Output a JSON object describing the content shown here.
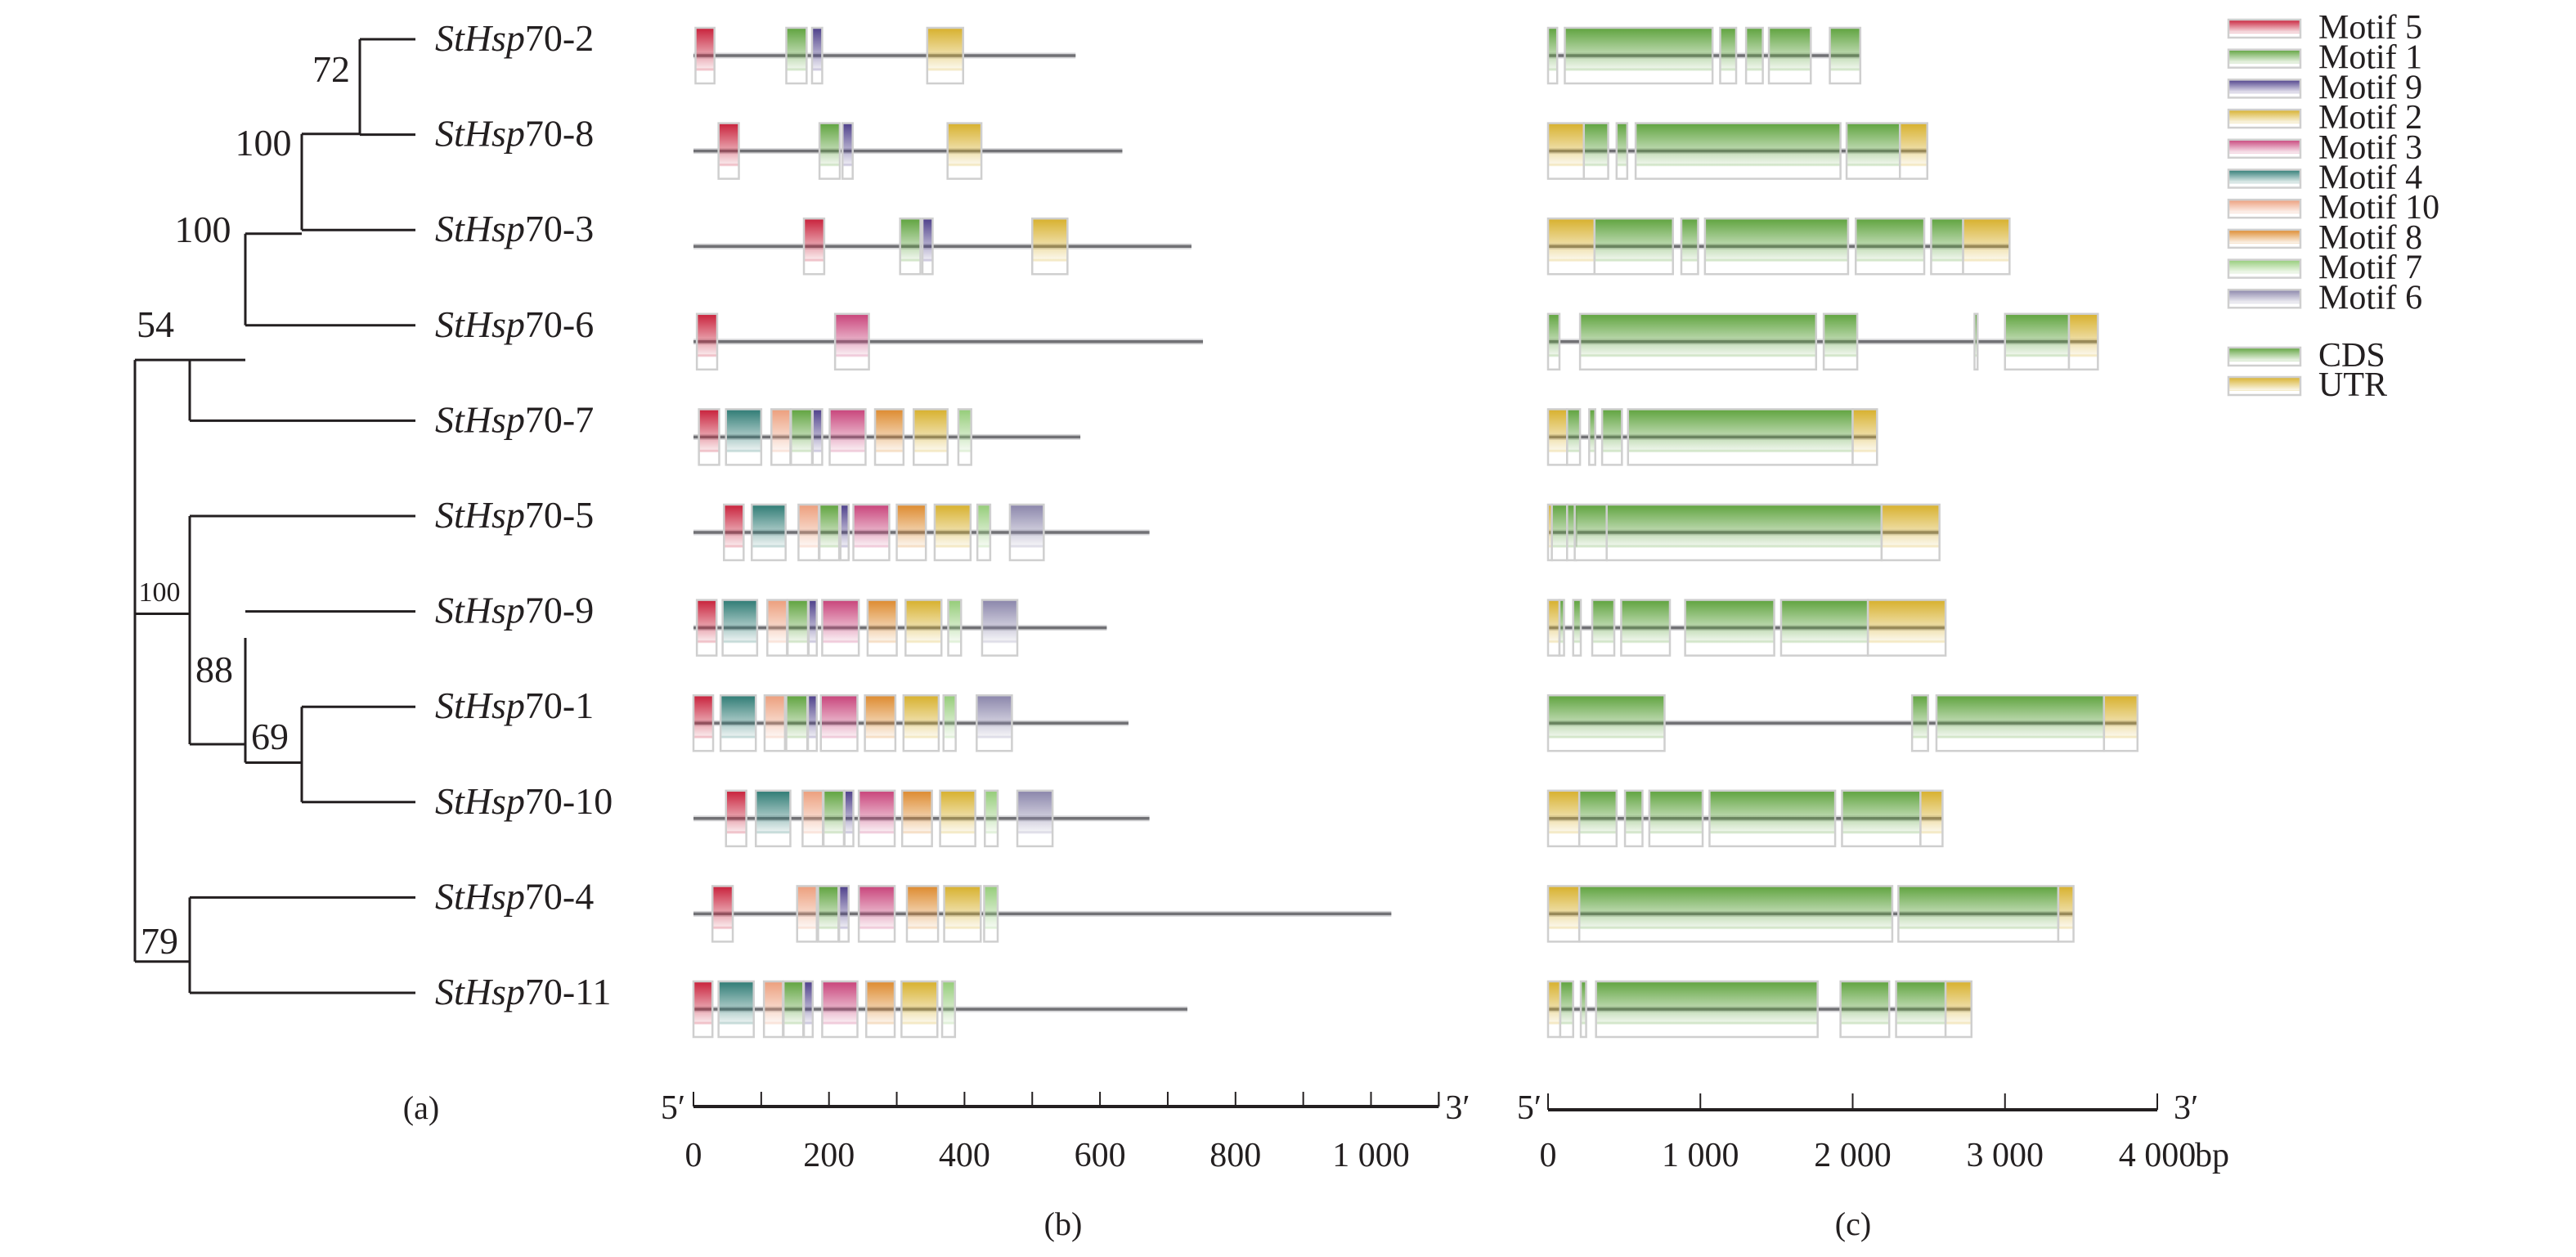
{
  "figure": {
    "panel_labels": [
      "(a)",
      "(b)",
      "(c)"
    ]
  },
  "chart_data": [
    {
      "type": "table",
      "panel": "(a)",
      "title": "Phylogenetic tree",
      "genes": [
        "StHsp70-2",
        "StHsp70-8",
        "StHsp70-3",
        "StHsp70-6",
        "StHsp70-7",
        "StHsp70-5",
        "StHsp70-9",
        "StHsp70-1",
        "StHsp70-10",
        "StHsp70-4",
        "StHsp70-11"
      ],
      "gene_prefix_italic": "StHsp",
      "gene_suffixes": [
        "70-2",
        "70-8",
        "70-3",
        "70-6",
        "70-7",
        "70-5",
        "70-9",
        "70-1",
        "70-10",
        "70-4",
        "70-11"
      ],
      "bootstrap": [
        {
          "value": "72",
          "clade": [
            "StHsp70-2",
            "StHsp70-8"
          ]
        },
        {
          "value": "100",
          "clade": [
            "StHsp70-2",
            "StHsp70-8",
            "StHsp70-3"
          ]
        },
        {
          "value": "100",
          "clade": [
            "StHsp70-2",
            "StHsp70-8",
            "StHsp70-3",
            "StHsp70-6"
          ]
        },
        {
          "value": "54",
          "clade": [
            "StHsp70-2",
            "StHsp70-8",
            "StHsp70-3",
            "StHsp70-6",
            "StHsp70-7"
          ]
        },
        {
          "value": "100",
          "clade": [
            "StHsp70-5",
            "StHsp70-9",
            "StHsp70-1",
            "StHsp70-10"
          ]
        },
        {
          "value": "88",
          "clade": [
            "StHsp70-9",
            "StHsp70-1",
            "StHsp70-10"
          ]
        },
        {
          "value": "69",
          "clade": [
            "StHsp70-1",
            "StHsp70-10"
          ]
        },
        {
          "value": "79",
          "clade": [
            "StHsp70-4",
            "StHsp70-11"
          ]
        }
      ]
    },
    {
      "type": "bar",
      "panel": "(b)",
      "title": "Conserved motifs",
      "xlabel": "",
      "end_labels": [
        "5′",
        "3′"
      ],
      "xlim": [
        0,
        1100
      ],
      "ticks": [
        0,
        200,
        400,
        600,
        800,
        1000
      ],
      "tick_labels": [
        "0",
        "200",
        "400",
        "600",
        "800",
        "1 000"
      ],
      "minor_tick_step": 100,
      "rows": [
        {
          "gene": "StHsp70-2",
          "length": 564,
          "motifs": [
            [
              5,
              3,
              31
            ],
            [
              1,
              137,
              167
            ],
            [
              9,
              175,
              190
            ],
            [
              2,
              345,
              398
            ]
          ]
        },
        {
          "gene": "StHsp70-8",
          "length": 633,
          "motifs": [
            [
              5,
              37,
              67
            ],
            [
              1,
              186,
              216
            ],
            [
              9,
              220,
              235
            ],
            [
              2,
              375,
              425
            ]
          ]
        },
        {
          "gene": "StHsp70-3",
          "length": 735,
          "motifs": [
            [
              5,
              163,
              193
            ],
            [
              1,
              305,
              335
            ],
            [
              9,
              338,
              353
            ],
            [
              2,
              500,
              552
            ]
          ]
        },
        {
          "gene": "StHsp70-6",
          "length": 752,
          "motifs": [
            [
              5,
              5,
              35
            ],
            [
              3,
              209,
              259
            ]
          ]
        },
        {
          "gene": "StHsp70-7",
          "length": 571,
          "motifs": [
            [
              5,
              8,
              38
            ],
            [
              4,
              48,
              100
            ],
            [
              10,
              115,
              143
            ],
            [
              1,
              144,
              175
            ],
            [
              9,
              176,
              190
            ],
            [
              3,
              201,
              254
            ],
            [
              8,
              268,
              310
            ],
            [
              2,
              325,
              375
            ],
            [
              7,
              391,
              410
            ]
          ]
        },
        {
          "gene": "StHsp70-5",
          "length": 673,
          "motifs": [
            [
              5,
              45,
              74
            ],
            [
              4,
              86,
              136
            ],
            [
              10,
              155,
              185
            ],
            [
              1,
              186,
              215
            ],
            [
              9,
              217,
              229
            ],
            [
              3,
              236,
              289
            ],
            [
              8,
              300,
              343
            ],
            [
              2,
              356,
              409
            ],
            [
              7,
              419,
              438
            ],
            [
              6,
              467,
              517
            ]
          ]
        },
        {
          "gene": "StHsp70-9",
          "length": 610,
          "motifs": [
            [
              5,
              5,
              34
            ],
            [
              4,
              43,
              94
            ],
            [
              10,
              109,
              138
            ],
            [
              1,
              139,
              169
            ],
            [
              9,
              170,
              182
            ],
            [
              3,
              190,
              244
            ],
            [
              8,
              257,
              300
            ],
            [
              2,
              313,
              366
            ],
            [
              7,
              376,
              395
            ],
            [
              6,
              426,
              478
            ]
          ]
        },
        {
          "gene": "StHsp70-1",
          "length": 642,
          "motifs": [
            [
              5,
              0,
              29
            ],
            [
              4,
              40,
              92
            ],
            [
              10,
              105,
              135
            ],
            [
              1,
              137,
              168
            ],
            [
              9,
              169,
              182
            ],
            [
              3,
              188,
              242
            ],
            [
              8,
              253,
              298
            ],
            [
              2,
              310,
              362
            ],
            [
              7,
              369,
              387
            ],
            [
              6,
              418,
              470
            ]
          ]
        },
        {
          "gene": "StHsp70-10",
          "length": 673,
          "motifs": [
            [
              5,
              48,
              78
            ],
            [
              4,
              92,
              143
            ],
            [
              10,
              161,
              191
            ],
            [
              1,
              192,
              222
            ],
            [
              9,
              223,
              236
            ],
            [
              3,
              244,
              297
            ],
            [
              8,
              308,
              352
            ],
            [
              2,
              364,
              416
            ],
            [
              7,
              430,
              449
            ],
            [
              6,
              478,
              530
            ]
          ]
        },
        {
          "gene": "StHsp70-4",
          "length": 1030,
          "motifs": [
            [
              5,
              28,
              58
            ],
            [
              10,
              153,
              182
            ],
            [
              1,
              184,
              214
            ],
            [
              9,
              215,
              229
            ],
            [
              3,
              244,
              297
            ],
            [
              8,
              315,
              361
            ],
            [
              2,
              370,
              424
            ],
            [
              7,
              429,
              449
            ]
          ]
        },
        {
          "gene": "StHsp70-11",
          "length": 729,
          "motifs": [
            [
              5,
              0,
              28
            ],
            [
              4,
              37,
              89
            ],
            [
              10,
              104,
              132
            ],
            [
              1,
              133,
              162
            ],
            [
              9,
              163,
              176
            ],
            [
              3,
              190,
              242
            ],
            [
              8,
              255,
              297
            ],
            [
              2,
              307,
              360
            ],
            [
              7,
              367,
              386
            ]
          ]
        }
      ]
    },
    {
      "type": "bar",
      "panel": "(c)",
      "title": "Gene structure",
      "xlabel": "",
      "unit": "bp",
      "end_labels": [
        "5′",
        "3′"
      ],
      "xlim": [
        0,
        4000
      ],
      "ticks": [
        0,
        1000,
        2000,
        3000,
        4000
      ],
      "tick_labels": [
        "0",
        "1 000",
        "2 000",
        "3 000",
        "4 000"
      ],
      "rows": [
        {
          "gene": "StHsp70-2",
          "length": 2050,
          "segments": [
            [
              "CDS",
              0,
              60
            ],
            [
              "CDS",
              110,
              1080
            ],
            [
              "CDS",
              1130,
              1235
            ],
            [
              "CDS",
              1300,
              1410
            ],
            [
              "CDS",
              1450,
              1725
            ],
            [
              "CDS",
              1850,
              2050
            ]
          ]
        },
        {
          "gene": "StHsp70-8",
          "length": 2490,
          "segments": [
            [
              "UTR",
              0,
              235
            ],
            [
              "CDS",
              235,
              395
            ],
            [
              "CDS",
              450,
              520
            ],
            [
              "CDS",
              575,
              1920
            ],
            [
              "CDS",
              1960,
              2310
            ],
            [
              "UTR",
              2310,
              2490
            ]
          ]
        },
        {
          "gene": "StHsp70-3",
          "length": 3030,
          "segments": [
            [
              "UTR",
              0,
              305
            ],
            [
              "CDS",
              305,
              820
            ],
            [
              "CDS",
              875,
              985
            ],
            [
              "CDS",
              1030,
              1970
            ],
            [
              "CDS",
              2020,
              2470
            ],
            [
              "CDS",
              2515,
              2725
            ],
            [
              "UTR",
              2725,
              3030
            ]
          ]
        },
        {
          "gene": "StHsp70-6",
          "length": 3610,
          "segments": [
            [
              "CDS",
              0,
              75
            ],
            [
              "CDS",
              210,
              1760
            ],
            [
              "CDS",
              1810,
              2030
            ],
            [
              "CDS",
              2800,
              2820
            ],
            [
              "CDS",
              3000,
              3420
            ],
            [
              "UTR",
              3420,
              3610
            ]
          ]
        },
        {
          "gene": "StHsp70-7",
          "length": 2160,
          "segments": [
            [
              "UTR",
              0,
              125
            ],
            [
              "CDS",
              125,
              210
            ],
            [
              "CDS",
              270,
              310
            ],
            [
              "CDS",
              355,
              485
            ],
            [
              "CDS",
              525,
              2000
            ],
            [
              "UTR",
              2000,
              2160
            ]
          ]
        },
        {
          "gene": "StHsp70-5",
          "length": 2570,
          "segments": [
            [
              "UTR",
              0,
              25
            ],
            [
              "CDS",
              25,
              125
            ],
            [
              "CDS",
              125,
              185
            ],
            [
              "CDS",
              175,
              385
            ],
            [
              "CDS",
              385,
              2190
            ],
            [
              "UTR",
              2190,
              2570
            ]
          ]
        },
        {
          "gene": "StHsp70-9",
          "length": 2610,
          "segments": [
            [
              "UTR",
              0,
              75
            ],
            [
              "CDS",
              75,
              105
            ],
            [
              "CDS",
              165,
              215
            ],
            [
              "CDS",
              290,
              435
            ],
            [
              "CDS",
              480,
              800
            ],
            [
              "CDS",
              900,
              1485
            ],
            [
              "CDS",
              1530,
              2100
            ],
            [
              "UTR",
              2100,
              2610
            ]
          ]
        },
        {
          "gene": "StHsp70-1",
          "length": 3870,
          "segments": [
            [
              "CDS",
              0,
              765
            ],
            [
              "CDS",
              2390,
              2495
            ],
            [
              "CDS",
              2550,
              3650
            ],
            [
              "UTR",
              3650,
              3870
            ]
          ]
        },
        {
          "gene": "StHsp70-10",
          "length": 2590,
          "segments": [
            [
              "UTR",
              0,
              205
            ],
            [
              "CDS",
              205,
              450
            ],
            [
              "CDS",
              505,
              620
            ],
            [
              "CDS",
              665,
              1015
            ],
            [
              "CDS",
              1060,
              1885
            ],
            [
              "CDS",
              1930,
              2445
            ],
            [
              "UTR",
              2445,
              2590
            ]
          ]
        },
        {
          "gene": "StHsp70-4",
          "length": 3450,
          "segments": [
            [
              "UTR",
              0,
              205
            ],
            [
              "CDS",
              205,
              2260
            ],
            [
              "CDS",
              2300,
              3350
            ],
            [
              "UTR",
              3350,
              3450
            ]
          ]
        },
        {
          "gene": "StHsp70-11",
          "length": 2780,
          "segments": [
            [
              "UTR",
              0,
              80
            ],
            [
              "CDS",
              80,
              165
            ],
            [
              "CDS",
              215,
              250
            ],
            [
              "CDS",
              315,
              1770
            ],
            [
              "CDS",
              1920,
              2240
            ],
            [
              "CDS",
              2285,
              2610
            ],
            [
              "UTR",
              2610,
              2780
            ]
          ]
        }
      ]
    }
  ],
  "legend": {
    "placement": "right",
    "motifs": [
      {
        "id": 5,
        "label": "Motif 5",
        "color": "#c8203a"
      },
      {
        "id": 1,
        "label": "Motif 1",
        "color": "#5fa33e"
      },
      {
        "id": 9,
        "label": "Motif 9",
        "color": "#4d3f8a"
      },
      {
        "id": 2,
        "label": "Motif 2",
        "color": "#d7b02c"
      },
      {
        "id": 3,
        "label": "Motif 3",
        "color": "#c8437a"
      },
      {
        "id": 4,
        "label": "Motif 4",
        "color": "#2e7b74"
      },
      {
        "id": 10,
        "label": "Motif 10",
        "color": "#ec9e7c"
      },
      {
        "id": 8,
        "label": "Motif 8",
        "color": "#dd8a2e"
      },
      {
        "id": 7,
        "label": "Motif 7",
        "color": "#94cc78"
      },
      {
        "id": 6,
        "label": "Motif 6",
        "color": "#8a85aa"
      }
    ],
    "structure": [
      {
        "id": "CDS",
        "label": "CDS",
        "color": "#5fa33e"
      },
      {
        "id": "UTR",
        "label": "UTR",
        "color": "#d7b02c"
      }
    ]
  }
}
